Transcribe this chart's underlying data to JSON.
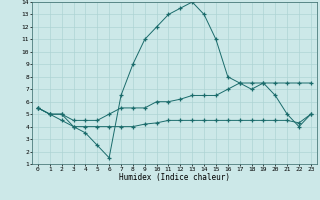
{
  "xlabel": "Humidex (Indice chaleur)",
  "xlim": [
    -0.5,
    23.5
  ],
  "ylim": [
    1,
    14
  ],
  "xticks": [
    0,
    1,
    2,
    3,
    4,
    5,
    6,
    7,
    8,
    9,
    10,
    11,
    12,
    13,
    14,
    15,
    16,
    17,
    18,
    19,
    20,
    21,
    22,
    23
  ],
  "yticks": [
    1,
    2,
    3,
    4,
    5,
    6,
    7,
    8,
    9,
    10,
    11,
    12,
    13,
    14
  ],
  "bg_color": "#cce8e8",
  "grid_color": "#aed4d4",
  "line_color": "#1a6b6b",
  "line1_x": [
    0,
    1,
    2,
    3,
    4,
    5,
    6,
    7,
    8,
    9,
    10,
    11,
    12,
    13,
    14,
    15,
    16,
    17,
    18,
    19,
    20,
    21,
    22,
    23
  ],
  "line1_y": [
    5.5,
    5.0,
    5.0,
    4.0,
    3.5,
    2.5,
    1.5,
    6.5,
    9.0,
    11.0,
    12.0,
    13.0,
    13.5,
    14.0,
    13.0,
    11.0,
    8.0,
    7.5,
    7.0,
    7.5,
    6.5,
    5.0,
    4.0,
    5.0
  ],
  "line2_x": [
    0,
    1,
    2,
    3,
    4,
    5,
    6,
    7,
    8,
    9,
    10,
    11,
    12,
    13,
    14,
    15,
    16,
    17,
    18,
    19,
    20,
    21,
    22,
    23
  ],
  "line2_y": [
    5.5,
    5.0,
    5.0,
    4.5,
    4.5,
    4.5,
    5.0,
    5.5,
    5.5,
    5.5,
    6.0,
    6.0,
    6.2,
    6.5,
    6.5,
    6.5,
    7.0,
    7.5,
    7.5,
    7.5,
    7.5,
    7.5,
    7.5,
    7.5
  ],
  "line3_x": [
    0,
    1,
    2,
    3,
    4,
    5,
    6,
    7,
    8,
    9,
    10,
    11,
    12,
    13,
    14,
    15,
    16,
    17,
    18,
    19,
    20,
    21,
    22,
    23
  ],
  "line3_y": [
    5.5,
    5.0,
    4.5,
    4.0,
    4.0,
    4.0,
    4.0,
    4.0,
    4.0,
    4.2,
    4.3,
    4.5,
    4.5,
    4.5,
    4.5,
    4.5,
    4.5,
    4.5,
    4.5,
    4.5,
    4.5,
    4.5,
    4.3,
    5.0
  ]
}
